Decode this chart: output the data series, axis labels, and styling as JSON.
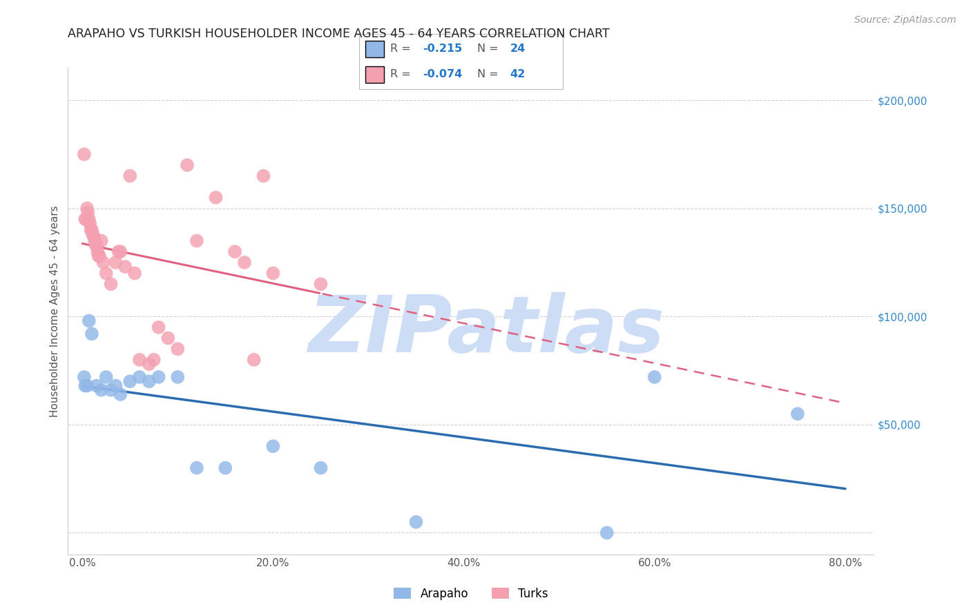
{
  "title": "ARAPAHO VS TURKISH HOUSEHOLDER INCOME AGES 45 - 64 YEARS CORRELATION CHART",
  "source": "Source: ZipAtlas.com",
  "ylabel": "Householder Income Ages 45 - 64 years",
  "xlabel_values": [
    0.0,
    20.0,
    40.0,
    60.0,
    80.0
  ],
  "xlabel_ticks": [
    "0.0%",
    "20.0%",
    "40.0%",
    "60.0%",
    "80.0%"
  ],
  "ylabel_ticks": [
    0,
    50000,
    100000,
    150000,
    200000
  ],
  "ylabel_labels": [
    "",
    "$50,000",
    "$100,000",
    "$150,000",
    "$200,000"
  ],
  "xlim": [
    -1.5,
    83
  ],
  "ylim": [
    -10000,
    215000
  ],
  "arapaho_color": "#92b8e8",
  "turks_color": "#f4a0b0",
  "arapaho_line_color": "#2b6cb0",
  "turks_line_color": "#e06080",
  "watermark": "ZIPatlas",
  "watermark_color": "#ccddf5",
  "background_color": "#ffffff",
  "legend_arapaho_r": "-0.215",
  "legend_arapaho_n": "24",
  "legend_turks_r": "-0.074",
  "legend_turks_n": "42",
  "accent_color": "#2277cc",
  "grid_color": "#cccccc",
  "tick_color": "#555555",
  "right_tick_color": "#3388cc",
  "title_color": "#222222",
  "source_color": "#999999",
  "arapaho_x": [
    0.2,
    0.3,
    0.5,
    0.7,
    1.0,
    1.5,
    2.0,
    2.5,
    3.0,
    3.5,
    4.0,
    5.0,
    6.0,
    7.0,
    8.0,
    10.0,
    12.0,
    15.0,
    20.0,
    25.0,
    35.0,
    55.0,
    60.0,
    75.0
  ],
  "arapaho_y": [
    72000,
    68000,
    68000,
    98000,
    92000,
    68000,
    66000,
    72000,
    66000,
    68000,
    64000,
    70000,
    72000,
    70000,
    72000,
    72000,
    30000,
    30000,
    40000,
    30000,
    5000,
    0,
    72000,
    55000
  ],
  "turks_x": [
    0.2,
    0.3,
    0.4,
    0.5,
    0.6,
    0.7,
    0.8,
    0.9,
    1.0,
    1.1,
    1.2,
    1.3,
    1.4,
    1.5,
    1.6,
    1.7,
    1.8,
    2.0,
    2.2,
    2.5,
    3.0,
    3.5,
    3.8,
    4.0,
    4.5,
    5.0,
    5.5,
    6.0,
    7.0,
    7.5,
    8.0,
    9.0,
    10.0,
    11.0,
    12.0,
    14.0,
    16.0,
    17.0,
    18.0,
    19.0,
    20.0,
    25.0
  ],
  "turks_y": [
    175000,
    145000,
    145000,
    150000,
    148000,
    145000,
    143000,
    140000,
    140000,
    138000,
    137000,
    135000,
    133000,
    133000,
    130000,
    128000,
    128000,
    135000,
    125000,
    120000,
    115000,
    125000,
    130000,
    130000,
    123000,
    165000,
    120000,
    80000,
    78000,
    80000,
    95000,
    90000,
    85000,
    170000,
    135000,
    155000,
    130000,
    125000,
    80000,
    165000,
    120000,
    115000
  ]
}
